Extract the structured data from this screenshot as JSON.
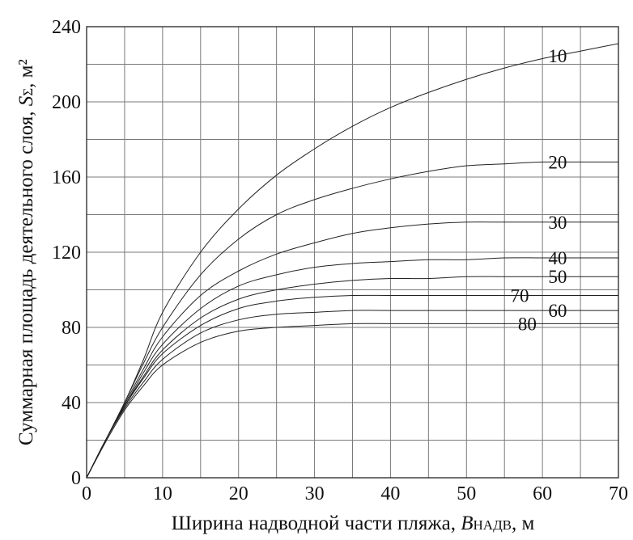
{
  "chart_data": {
    "type": "line",
    "title": "",
    "xlabel": {
      "main": "Ширина надводной части пляжа, ",
      "symbol": "B",
      "subscript": "НАДВ",
      "unit": ", м"
    },
    "ylabel": {
      "main": "Суммарная площадь деятельного слоя, ",
      "symbol": "S",
      "subscript": "Σ",
      "unit": ", м²"
    },
    "xlim": [
      0,
      70
    ],
    "ylim": [
      0,
      240
    ],
    "x_ticks": [
      "0",
      "10",
      "20",
      "30",
      "40",
      "50",
      "60",
      "70"
    ],
    "y_ticks": [
      "0",
      "40",
      "80",
      "120",
      "160",
      "200",
      "240"
    ],
    "x_grid_step": 5,
    "y_grid_step": 20,
    "grid": true,
    "x": [
      0,
      2.5,
      5,
      7.5,
      10,
      15,
      20,
      25,
      30,
      35,
      40,
      45,
      50,
      55,
      60,
      65,
      70
    ],
    "series": [
      {
        "name": "10",
        "label_at": 62,
        "values": [
          0,
          20,
          40,
          63,
          88,
          120,
          143,
          161,
          175,
          187,
          197,
          205,
          212,
          218,
          223,
          227,
          231
        ]
      },
      {
        "name": "20",
        "label_at": 62,
        "values": [
          0,
          20,
          40,
          61,
          80,
          108,
          127,
          140,
          148,
          154,
          159,
          163,
          166,
          167,
          168,
          168,
          168
        ]
      },
      {
        "name": "30",
        "label_at": 62,
        "values": [
          0,
          20,
          39,
          58,
          75,
          97,
          110,
          119,
          125,
          130,
          133,
          135,
          136,
          136,
          136,
          136,
          136
        ]
      },
      {
        "name": "40",
        "label_at": 62,
        "values": [
          0,
          20,
          38,
          56,
          71,
          90,
          102,
          108,
          112,
          114,
          115,
          116,
          116,
          117,
          117,
          117,
          117
        ]
      },
      {
        "name": "50",
        "label_at": 62,
        "values": [
          0,
          20,
          38,
          54,
          68,
          85,
          95,
          100,
          103,
          105,
          106,
          106,
          107,
          107,
          107,
          107,
          107
        ]
      },
      {
        "name": "70",
        "label_at": 57,
        "values": [
          0,
          20,
          38,
          53,
          66,
          81,
          90,
          94,
          96,
          97,
          97,
          97,
          97,
          97,
          97,
          97,
          97
        ]
      },
      {
        "name": "60",
        "label_at": 62,
        "values": [
          0,
          20,
          37,
          51,
          63,
          77,
          84,
          87,
          88,
          89,
          89,
          89,
          89,
          89,
          89,
          89,
          89
        ]
      },
      {
        "name": "80",
        "label_at": 58,
        "values": [
          0,
          19,
          36,
          49,
          60,
          72,
          78,
          80,
          81,
          82,
          82,
          82,
          82,
          82,
          82,
          82,
          82
        ]
      }
    ]
  }
}
